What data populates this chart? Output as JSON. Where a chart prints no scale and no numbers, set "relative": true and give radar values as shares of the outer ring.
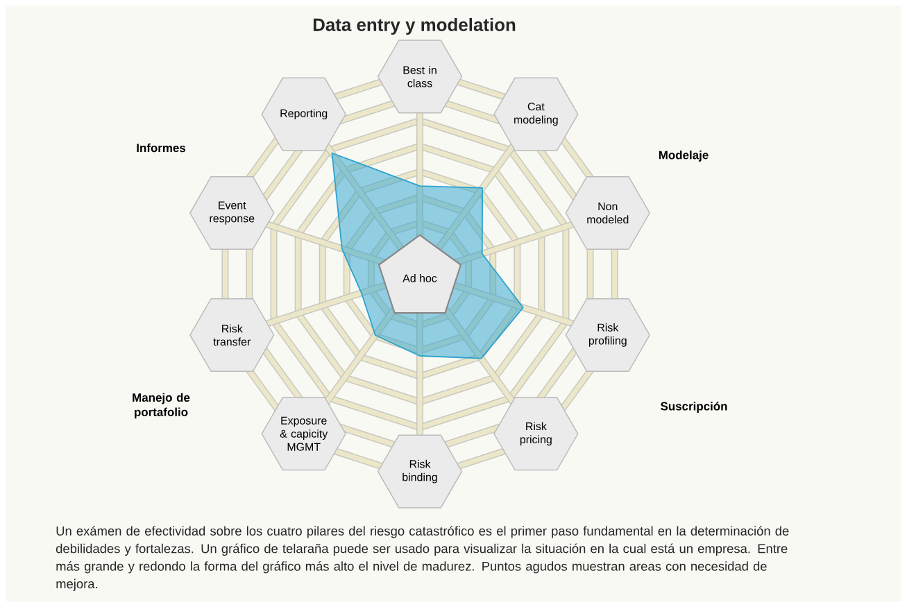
{
  "chart_data": {
    "type": "radar",
    "title": "Data entry y modelation",
    "categories": [
      "Best in class",
      "Cat modeling",
      "Non modeled",
      "Risk profiling",
      "Risk pricing",
      "Risk binding",
      "Exposure & capicity MGMT",
      "Risk transfer",
      "Event response",
      "Reporting"
    ],
    "series": [
      {
        "color": "#2ba3cf",
        "values": [
          0.43,
          0.52,
          0.32,
          0.53,
          0.51,
          0.4,
          0.37,
          0.3,
          0.4,
          0.73
        ]
      }
    ],
    "relative": true,
    "grid": true,
    "annotations": [
      "Ad hoc",
      "Informes",
      "Modelaje",
      "Manejo de portafolio",
      "Suscripción",
      "Un exámen de efectividad sobre los cuatro pilares del riesgo catastrófico es el primer paso fundamental en la determinación de debilidades y fortalezas. Un gráfico de telaraña puede ser usado para visualizar la situación en la cual está un empresa. Entre más grande y redondo la forma del gráfico más alto el nivel de madurez. Puntos agudos muestran areas con necesidad de mejora."
    ]
  }
}
